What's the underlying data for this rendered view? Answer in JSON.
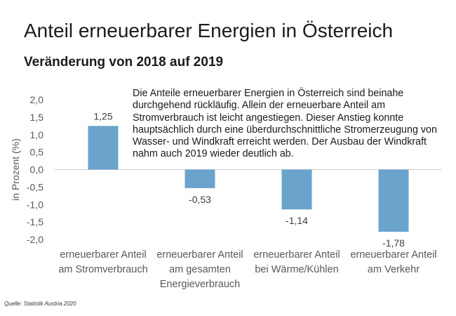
{
  "title": "Anteil erneuerbarer Energien in Österreich",
  "subtitle": "Veränderung von 2018 auf 2019",
  "note": "Die Anteile erneuerbarer Energien in Österreich sind beinahe durchgehend rückläufig. Allein der erneuerbare Anteil am Stromverbrauch ist leicht angestiegen. Dieser Anstieg konnte hauptsächlich durch eine überdurchschnittliche Stromerzeugung von Wasser- und Windkraft erreicht werden. Der Ausbau der Windkraft nahm auch 2019 wieder deutlich ab.",
  "source": "Quelle: Statistik Austria 2020",
  "chart_data": {
    "type": "bar",
    "title": "Anteil erneuerbarer Energien in Österreich",
    "subtitle": "Veränderung von 2018 auf 2019",
    "xlabel": "",
    "ylabel": "in Prozent (%)",
    "ylim": [
      -2.0,
      2.0
    ],
    "yticks": [
      2.0,
      1.5,
      1.0,
      0.5,
      0.0,
      -0.5,
      -1.0,
      -1.5,
      -2.0
    ],
    "ytick_labels": [
      "2,0",
      "1,5",
      "1,0",
      "0,5",
      "0,0",
      "-0,5",
      "-1,0",
      "-1,5",
      "-2,0"
    ],
    "grid": false,
    "bar_color": "#6aa3cc",
    "categories": [
      [
        "erneuerbarer Anteil",
        "am Stromverbrauch"
      ],
      [
        "erneuerbarer Anteil",
        "am gesamten",
        "Energieverbrauch"
      ],
      [
        "erneuerbarer Anteil",
        "bei Wärme/Kühlen"
      ],
      [
        "erneuerbarer Anteil",
        "am Verkehr"
      ]
    ],
    "values": [
      1.25,
      -0.53,
      -1.14,
      -1.78
    ],
    "value_labels": [
      "1,25",
      "-0,53",
      "-1,14",
      "-1,78"
    ]
  }
}
